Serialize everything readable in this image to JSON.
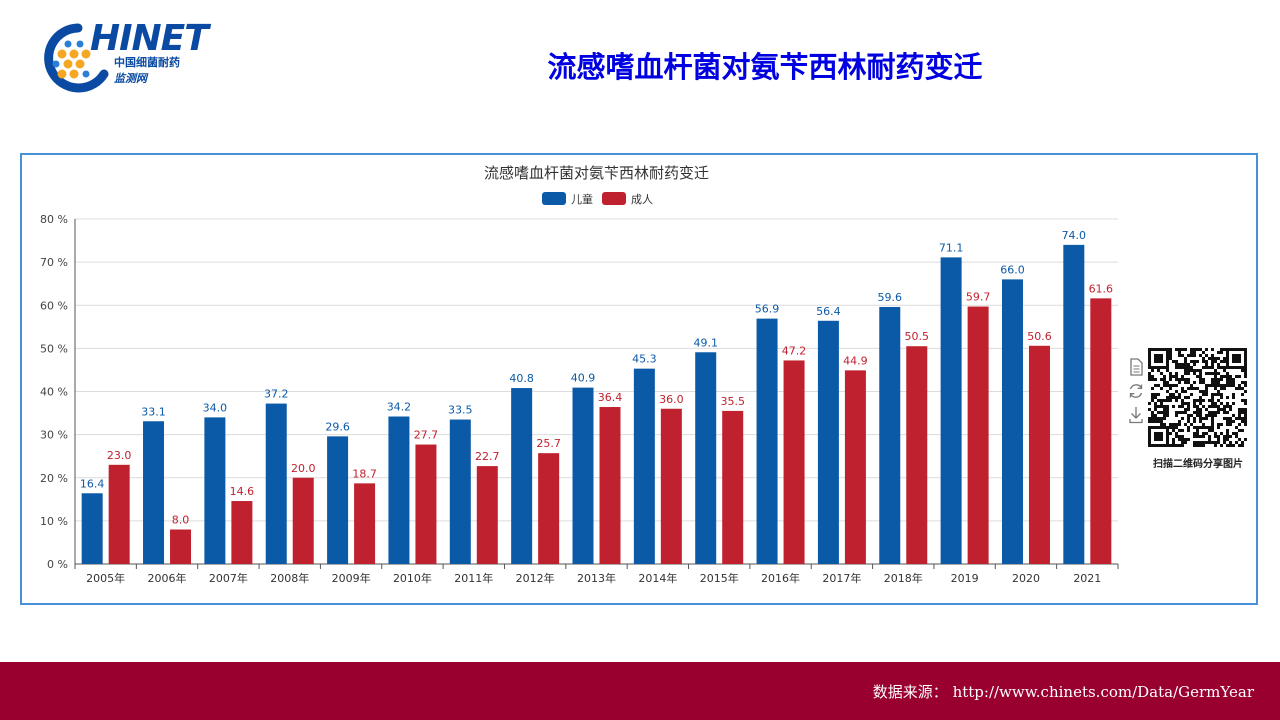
{
  "logo": {
    "name": "HINET",
    "sub_line1": "中国细菌耐药",
    "sub_line2": "监测网"
  },
  "slide_title": "流感嗜血杆菌对氨苄西林耐药变迁",
  "chart_data": {
    "type": "bar",
    "title": "流感嗜血杆菌对氨苄西林耐药变迁",
    "categories": [
      "2005年",
      "2006年",
      "2007年",
      "2008年",
      "2009年",
      "2010年",
      "2011年",
      "2012年",
      "2013年",
      "2014年",
      "2015年",
      "2016年",
      "2017年",
      "2018年",
      "2019",
      "2020",
      "2021"
    ],
    "series": [
      {
        "name": "儿童",
        "color": "#0b5aa8",
        "values": [
          16.4,
          33.1,
          34.0,
          37.2,
          29.6,
          34.2,
          33.5,
          40.8,
          40.9,
          45.3,
          49.1,
          56.9,
          56.4,
          59.6,
          71.1,
          66.0,
          74.0
        ]
      },
      {
        "name": "成人",
        "color": "#c0212f",
        "values": [
          23.0,
          8.0,
          14.6,
          20.0,
          18.7,
          27.7,
          22.7,
          25.7,
          36.4,
          36.0,
          35.5,
          47.2,
          44.9,
          50.5,
          59.7,
          50.6,
          61.6
        ]
      }
    ],
    "ylim": [
      0,
      80
    ],
    "yticks": [
      0,
      10,
      20,
      30,
      40,
      50,
      60,
      70,
      80
    ],
    "ytick_suffix": " %",
    "grid": true,
    "legend_position": "top-center",
    "data_labels": true
  },
  "toolbox": {
    "icons": [
      "data-view-icon",
      "restore-icon",
      "download-icon"
    ]
  },
  "qr": {
    "caption": "扫描二维码分享图片"
  },
  "footer": {
    "source_text": "数据来源：  http://www.chinets.com/Data/GermYear"
  }
}
